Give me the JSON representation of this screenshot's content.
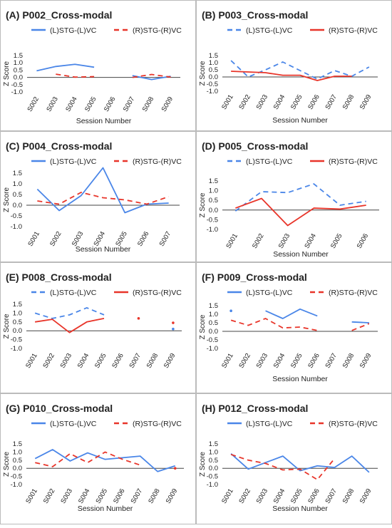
{
  "figure": {
    "colors": {
      "left": "#4a86e8",
      "right": "#e8352a",
      "axis": "#444444",
      "text": "#222222"
    }
  },
  "chart_data": [
    {
      "type": "line",
      "title": "(A) P002_Cross-modal",
      "categories": [
        "S002",
        "S003",
        "S004",
        "S005",
        "S006",
        "S007",
        "S008",
        "S009"
      ],
      "xlabel": "Session Number",
      "ylabel": "Z Score",
      "yticks": [
        "1.5",
        "1.0",
        "0.5",
        "0.0",
        "-0.5",
        "-1.0"
      ],
      "ylim": [
        -1.0,
        1.5
      ],
      "legend": "top",
      "series": [
        {
          "name": "(L)STG-(L)VC",
          "style": "solid",
          "values": [
            0.45,
            0.75,
            0.9,
            0.7,
            null,
            0.12,
            -0.15,
            0.08
          ]
        },
        {
          "name": "(R)STG-(R)VC",
          "style": "dashed",
          "values": [
            null,
            0.22,
            0.02,
            0.05,
            null,
            0.0,
            0.2,
            0.02
          ]
        }
      ]
    },
    {
      "type": "line",
      "title": "(B) P003_Cross-modal",
      "categories": [
        "S001",
        "S002",
        "S003",
        "S004",
        "S005",
        "S006",
        "S007",
        "S008",
        "S009"
      ],
      "xlabel": "Session Number",
      "ylabel": "Z Score",
      "yticks": [
        "1.5",
        "1.0",
        "0.5",
        "0.0",
        "-0.5",
        "-1.0"
      ],
      "ylim": [
        -1.0,
        1.5
      ],
      "legend": "top",
      "series": [
        {
          "name": "(L)STG-(L)VC",
          "style": "dashed",
          "values": [
            1.15,
            0.0,
            0.5,
            1.05,
            0.45,
            -0.15,
            0.45,
            0.05,
            0.7
          ]
        },
        {
          "name": "(R)STG-(R)VC",
          "style": "solid",
          "values": [
            0.4,
            0.35,
            0.3,
            0.12,
            0.12,
            -0.25,
            0.05,
            0.05,
            null
          ]
        }
      ]
    },
    {
      "type": "line",
      "title": "(C) P004_Cross-modal",
      "categories": [
        "S001",
        "S002",
        "S003",
        "S004",
        "S005",
        "S006",
        "S007"
      ],
      "xlabel": "Session Number",
      "ylabel": "Z Score",
      "yticks": [
        "1.5",
        "1.0",
        "0.5",
        "0.0",
        "-0.5",
        "-1.0"
      ],
      "ylim": [
        -1.0,
        1.5
      ],
      "legend": "top",
      "series": [
        {
          "name": "(L)STG-(L)VC",
          "style": "solid",
          "values": [
            0.75,
            -0.25,
            0.45,
            1.75,
            -0.35,
            0.05,
            0.1
          ]
        },
        {
          "name": "(R)STG-(R)VC",
          "style": "dashed",
          "values": [
            0.2,
            0.05,
            0.6,
            0.35,
            0.25,
            0.05,
            0.4
          ]
        }
      ]
    },
    {
      "type": "line",
      "title": "(D) P005_Cross-modal",
      "categories": [
        "S001",
        "S002",
        "S003",
        "S004",
        "S005",
        "S006"
      ],
      "xlabel": "Session Number",
      "ylabel": "Z Score",
      "yticks": [
        "1.5",
        "1.0",
        "0.5",
        "0.0",
        "-0.5",
        "-1.0"
      ],
      "ylim": [
        -1.0,
        1.5
      ],
      "legend": "top",
      "series": [
        {
          "name": "(L)STG-(L)VC",
          "style": "dashed",
          "values": [
            -0.05,
            0.95,
            0.9,
            1.35,
            0.25,
            0.45
          ]
        },
        {
          "name": "(R)STG-(R)VC",
          "style": "solid",
          "values": [
            0.1,
            0.6,
            -0.8,
            0.1,
            0.05,
            0.25
          ]
        }
      ]
    },
    {
      "type": "line",
      "title": "(E) P008_Cross-modal",
      "categories": [
        "S001",
        "S002",
        "S003",
        "S004",
        "S005",
        "S006",
        "S007",
        "S008",
        "S009"
      ],
      "xlabel": "",
      "ylabel": "Z Score",
      "yticks": [
        "1.5",
        "1.0",
        "0.5",
        "0.0",
        "-0.5",
        "-1.0"
      ],
      "ylim": [
        -1.0,
        1.5
      ],
      "legend": "top",
      "series": [
        {
          "name": "(L)STG-(L)VC",
          "style": "dashed",
          "values": [
            1.0,
            0.7,
            0.9,
            1.3,
            0.9,
            null,
            null,
            null,
            0.1
          ]
        },
        {
          "name": "(R)STG-(R)VC",
          "style": "solid",
          "values": [
            0.5,
            0.65,
            -0.1,
            0.5,
            0.7,
            null,
            0.7,
            null,
            0.45
          ]
        }
      ]
    },
    {
      "type": "line",
      "title": "(F) P009_Cross-modal",
      "categories": [
        "S001",
        "S002",
        "S003",
        "S004",
        "S005",
        "S006",
        "S007",
        "S008",
        "S009"
      ],
      "xlabel": "Session Number",
      "ylabel": "Z Score",
      "yticks": [
        "1.5",
        "1.0",
        "0.5",
        "0.0",
        "-0.5",
        "-1.0"
      ],
      "ylim": [
        -1.0,
        1.5
      ],
      "legend": "top",
      "series": [
        {
          "name": "(L)STG-(L)VC",
          "style": "solid",
          "values": [
            1.2,
            null,
            1.2,
            0.75,
            1.3,
            0.9,
            null,
            0.55,
            0.5
          ]
        },
        {
          "name": "(R)STG-(R)VC",
          "style": "dashed",
          "values": [
            0.65,
            0.35,
            0.75,
            0.2,
            0.25,
            0.05,
            null,
            0.05,
            0.45
          ]
        }
      ]
    },
    {
      "type": "line",
      "title": "(G) P010_Cross-modal",
      "categories": [
        "S001",
        "S002",
        "S003",
        "S004",
        "S005",
        "S006",
        "S007",
        "S008",
        "S009"
      ],
      "xlabel": "Session Number",
      "ylabel": "Z Score",
      "yticks": [
        "1.5",
        "1.0",
        "0.5",
        "0.0",
        "-0.5",
        "-1.0"
      ],
      "ylim": [
        -1.0,
        1.5
      ],
      "legend": "top",
      "series": [
        {
          "name": "(L)STG-(L)VC",
          "style": "solid",
          "values": [
            0.6,
            1.15,
            0.45,
            0.95,
            0.55,
            0.65,
            0.75,
            -0.2,
            0.15
          ]
        },
        {
          "name": "(R)STG-(R)VC",
          "style": "dashed",
          "values": [
            0.35,
            0.1,
            0.9,
            0.35,
            1.0,
            0.55,
            0.2,
            null,
            0.0
          ]
        }
      ]
    },
    {
      "type": "line",
      "title": "(H) P012_Cross-modal",
      "categories": [
        "S001",
        "S002",
        "S003",
        "S004",
        "S005",
        "S006",
        "S007",
        "S008",
        "S009"
      ],
      "xlabel": "Session Number",
      "ylabel": "Z Score",
      "yticks": [
        "1.5",
        "1.0",
        "0.5",
        "0.0",
        "-0.5",
        "-1.0"
      ],
      "ylim": [
        -1.0,
        1.5
      ],
      "legend": "top",
      "series": [
        {
          "name": "(L)STG-(L)VC",
          "style": "solid",
          "values": [
            0.9,
            -0.05,
            0.35,
            0.75,
            -0.15,
            0.15,
            0.05,
            0.75,
            -0.25
          ]
        },
        {
          "name": "(R)STG-(R)VC",
          "style": "dashed",
          "values": [
            0.85,
            0.5,
            0.3,
            -0.1,
            -0.05,
            -0.7,
            0.6,
            null,
            null
          ]
        }
      ]
    }
  ]
}
